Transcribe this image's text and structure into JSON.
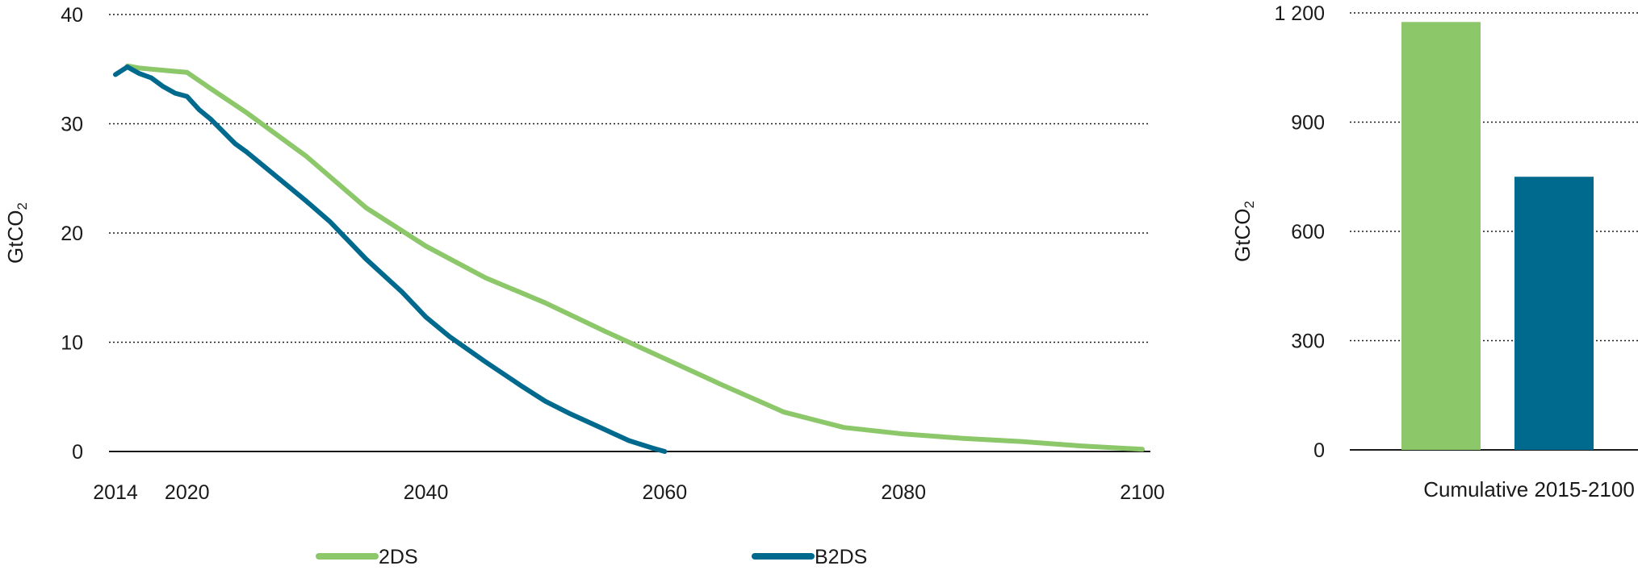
{
  "chart_data": [
    {
      "type": "line",
      "ylabel": "GtCO",
      "ylabel_sub": "2",
      "ylim": [
        0,
        40
      ],
      "xlim": [
        2014,
        2100
      ],
      "y_ticks": [
        0,
        10,
        20,
        30,
        40
      ],
      "x_ticks": [
        2014,
        2020,
        2040,
        2060,
        2080,
        2100
      ],
      "y_tick_labels": [
        "0",
        "10",
        "20",
        "30",
        "40"
      ],
      "x_tick_labels": [
        "2014",
        "2020",
        "2040",
        "2060",
        "2080",
        "2100"
      ],
      "grid": "horizontal dotted",
      "legend_position": "bottom",
      "series": [
        {
          "name": "2DS",
          "color": "#8cc76a",
          "points": [
            [
              2015,
              35.3
            ],
            [
              2016,
              35.1
            ],
            [
              2017,
              35.0
            ],
            [
              2018,
              34.9
            ],
            [
              2019,
              34.8
            ],
            [
              2020,
              34.7
            ],
            [
              2022,
              33.2
            ],
            [
              2025,
              31.0
            ],
            [
              2030,
              27.0
            ],
            [
              2035,
              22.3
            ],
            [
              2040,
              18.8
            ],
            [
              2045,
              15.9
            ],
            [
              2050,
              13.6
            ],
            [
              2055,
              11.0
            ],
            [
              2060,
              8.5
            ],
            [
              2065,
              6.0
            ],
            [
              2070,
              3.6
            ],
            [
              2075,
              2.2
            ],
            [
              2080,
              1.6
            ],
            [
              2085,
              1.2
            ],
            [
              2090,
              0.9
            ],
            [
              2095,
              0.5
            ],
            [
              2100,
              0.2
            ]
          ]
        },
        {
          "name": "B2DS",
          "color": "#006a8e",
          "points": [
            [
              2014,
              34.5
            ],
            [
              2015,
              35.2
            ],
            [
              2016,
              34.6
            ],
            [
              2017,
              34.2
            ],
            [
              2018,
              33.4
            ],
            [
              2019,
              32.8
            ],
            [
              2020,
              32.5
            ],
            [
              2021,
              31.3
            ],
            [
              2022,
              30.4
            ],
            [
              2024,
              28.2
            ],
            [
              2025,
              27.4
            ],
            [
              2030,
              22.9
            ],
            [
              2032,
              21.0
            ],
            [
              2035,
              17.6
            ],
            [
              2038,
              14.6
            ],
            [
              2040,
              12.3
            ],
            [
              2042,
              10.5
            ],
            [
              2045,
              8.2
            ],
            [
              2048,
              6.0
            ],
            [
              2050,
              4.6
            ],
            [
              2052,
              3.5
            ],
            [
              2055,
              2.0
            ],
            [
              2057,
              1.0
            ],
            [
              2059,
              0.3
            ],
            [
              2060,
              0.0
            ]
          ]
        }
      ]
    },
    {
      "type": "bar",
      "ylabel": "GtCO",
      "ylabel_sub": "2",
      "ylim": [
        0,
        1200
      ],
      "y_ticks": [
        0,
        300,
        600,
        900,
        1200
      ],
      "y_tick_labels": [
        "0",
        "300",
        "600",
        "900",
        "1 200"
      ],
      "categories": [
        "Cumulative 2015-2100"
      ],
      "grid": "horizontal dotted",
      "series": [
        {
          "name": "2DS",
          "color": "#8cc76a",
          "values": [
            1175
          ]
        },
        {
          "name": "B2DS",
          "color": "#006a8e",
          "values": [
            750
          ]
        }
      ]
    }
  ]
}
